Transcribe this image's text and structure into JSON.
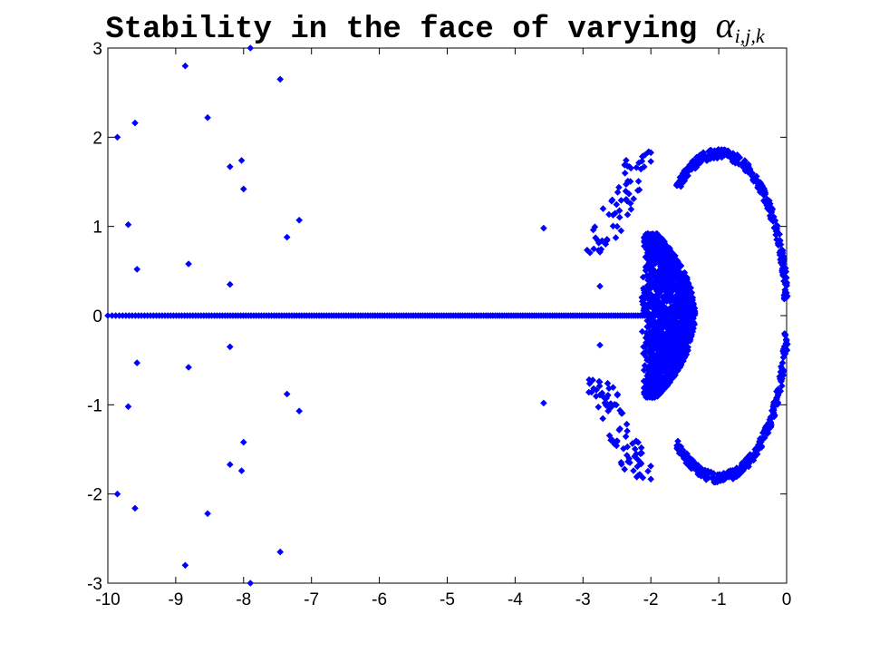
{
  "chart_data": {
    "type": "scatter",
    "title_text": "Stability in the face of varying",
    "title_symbol": "α",
    "title_subscript": "i,j,k",
    "xlabel": "",
    "ylabel": "",
    "xlim": [
      -10,
      0
    ],
    "ylim": [
      -3,
      3
    ],
    "x_ticks": [
      -10,
      -9,
      -8,
      -7,
      -6,
      -5,
      -4,
      -3,
      -2,
      -1,
      0
    ],
    "y_ticks": [
      -3,
      -2,
      -1,
      0,
      1,
      2,
      3
    ],
    "grid": false,
    "marker": "diamond",
    "color": "#0000ff",
    "series": [
      {
        "points": [
          [
            -9.86,
            2.0
          ],
          [
            -9.86,
            -2.0
          ],
          [
            -9.7,
            1.02
          ],
          [
            -9.7,
            -1.02
          ],
          [
            -9.6,
            2.16
          ],
          [
            -9.6,
            -2.16
          ],
          [
            -9.57,
            0.52
          ],
          [
            -9.57,
            -0.53
          ],
          [
            -8.86,
            2.8
          ],
          [
            -8.86,
            -2.8
          ],
          [
            -8.81,
            0.58
          ],
          [
            -8.81,
            -0.58
          ],
          [
            -8.53,
            2.22
          ],
          [
            -8.53,
            -2.22
          ],
          [
            -8.2,
            1.67
          ],
          [
            -8.2,
            -1.67
          ],
          [
            -8.2,
            0.35
          ],
          [
            -8.2,
            -0.35
          ],
          [
            -8.03,
            1.74
          ],
          [
            -8.03,
            -1.74
          ],
          [
            -8.0,
            1.42
          ],
          [
            -8.0,
            -1.42
          ],
          [
            -7.9,
            3.0
          ],
          [
            -7.9,
            -3.0
          ],
          [
            -7.46,
            2.65
          ],
          [
            -7.46,
            -2.65
          ],
          [
            -7.36,
            0.88
          ],
          [
            -7.36,
            -0.88
          ],
          [
            -7.18,
            1.07
          ],
          [
            -7.18,
            -1.07
          ],
          [
            -3.58,
            0.98
          ],
          [
            -3.58,
            -0.98
          ],
          [
            -2.75,
            0.33
          ],
          [
            -2.75,
            -0.33
          ]
        ],
        "clusters": [
          {
            "shape": "real-axis",
            "x_from": -10,
            "x_to": -1.7,
            "count": 230
          },
          {
            "shape": "outer-arc",
            "cx": -1.0,
            "rx": 1.0,
            "ry": 1.82,
            "angle_from_deg": 6,
            "angle_to_deg": 128,
            "count": 620
          },
          {
            "shape": "inner-band",
            "x_from": -2.15,
            "x_to": -1.35,
            "y_max": 0.92,
            "count": 1500
          },
          {
            "shape": "left-scatter",
            "x_from": -3.0,
            "x_to": -2.0,
            "y_min": 0.7,
            "y_max": 1.85,
            "count": 140
          }
        ]
      }
    ]
  }
}
